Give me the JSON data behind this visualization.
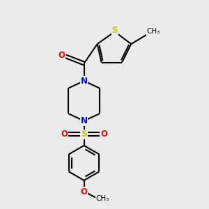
{
  "bg_color": "#ebebeb",
  "bond_color": "#000000",
  "N_color": "#0000ff",
  "O_color": "#ff0000",
  "S_color": "#cccc00",
  "line_width": 1.5,
  "figsize": [
    3.0,
    3.0
  ],
  "dpi": 100,
  "xlim": [
    0,
    10
  ],
  "ylim": [
    0,
    10
  ]
}
